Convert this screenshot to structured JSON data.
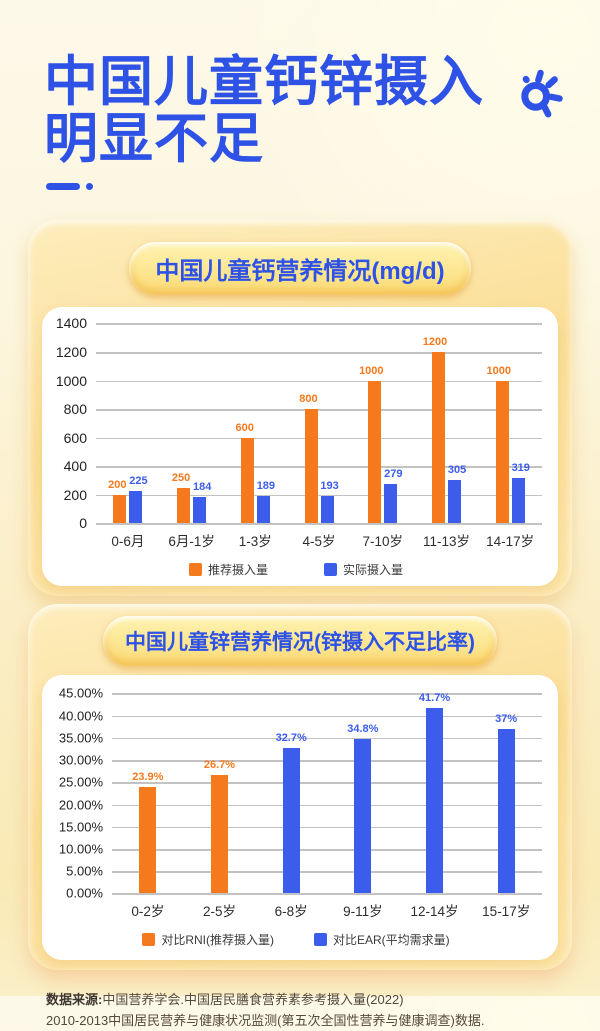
{
  "header": {
    "title_line1": "中国儿童钙锌摄入",
    "title_line2": "明显不足"
  },
  "colors": {
    "title_blue": "#2E52E6",
    "orange": "#F57A1D",
    "blue": "#3C5DEC",
    "gridline": "#C3C3C3"
  },
  "chart_data": [
    {
      "type": "bar",
      "title": "中国儿童钙营养情况(mg/d)",
      "categories": [
        "0-6月",
        "6月-1岁",
        "1-3岁",
        "4-5岁",
        "7-10岁",
        "11-13岁",
        "14-17岁"
      ],
      "series": [
        {
          "name": "推荐摄入量",
          "color": "#F57A1D",
          "values": [
            200,
            250,
            600,
            800,
            1000,
            1200,
            1000
          ],
          "labels": [
            "200",
            "250",
            "600",
            "800",
            "1000",
            "1200",
            "1000"
          ]
        },
        {
          "name": "实际摄入量",
          "color": "#3C5DEC",
          "values": [
            225,
            184,
            189,
            193,
            279,
            305,
            319
          ],
          "labels": [
            "225",
            "184",
            "189",
            "193",
            "279",
            "305",
            "319"
          ]
        }
      ],
      "ylim": [
        0,
        1400
      ],
      "yticks": [
        "1400",
        "1200",
        "1000",
        "800",
        "600",
        "400",
        "200",
        "0"
      ],
      "grid": true,
      "legend_position": "bottom"
    },
    {
      "type": "bar",
      "title": "中国儿童锌营养情况(锌摄入不足比率)",
      "categories": [
        "0-2岁",
        "2-5岁",
        "6-8岁",
        "9-11岁",
        "12-14岁",
        "15-17岁"
      ],
      "values": [
        23.9,
        26.7,
        32.7,
        34.8,
        41.7,
        37
      ],
      "value_labels": [
        "23.9%",
        "26.7%",
        "32.7%",
        "34.8%",
        "41.7%",
        "37%"
      ],
      "bar_series": [
        0,
        0,
        1,
        1,
        1,
        1
      ],
      "legend": [
        {
          "name": "对比RNI(推荐摄入量)",
          "color": "#F57A1D"
        },
        {
          "name": "对比EAR(平均需求量)",
          "color": "#3C5DEC"
        }
      ],
      "ylim": [
        0,
        45
      ],
      "yticks": [
        "45.00%",
        "40.00%",
        "35.00%",
        "30.00%",
        "25.00%",
        "20.00%",
        "15.00%",
        "10.00%",
        "5.00%",
        "0.00%"
      ],
      "grid": true,
      "legend_position": "bottom"
    }
  ],
  "footer": {
    "source_label": "数据来源:",
    "line1": "中国营养学会.中国居民膳食营养素参考摄入量(2022)",
    "line2": "2010-2013中国居民营养与健康状况监测(第五次全国性营养与健康调查)数据."
  }
}
